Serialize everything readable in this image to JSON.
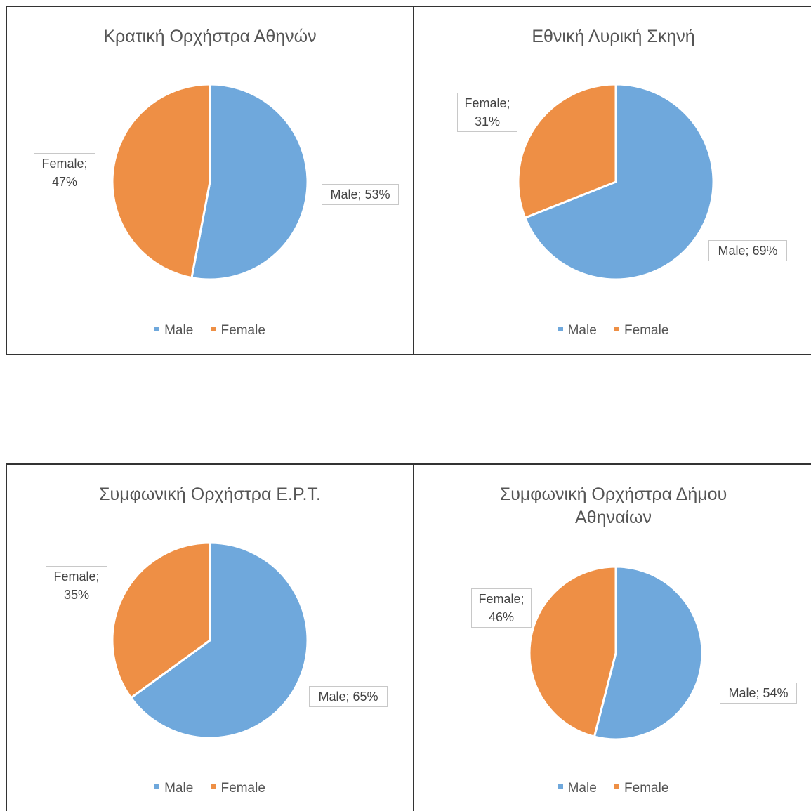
{
  "colors": {
    "male": "#6fa8dc",
    "female": "#ee8f45",
    "border": "#333333"
  },
  "chart_data": [
    {
      "type": "pie",
      "title": "Κρατική Ορχήστρα Αθηνών",
      "categories": [
        "Male",
        "Female"
      ],
      "values": [
        53,
        47
      ],
      "data_labels": [
        "Male; 53%",
        "Female; 47%"
      ],
      "legend": {
        "position": "bottom",
        "entries": [
          "Male",
          "Female"
        ]
      }
    },
    {
      "type": "pie",
      "title": "Εθνική Λυρική Σκηνή",
      "categories": [
        "Male",
        "Female"
      ],
      "values": [
        69,
        31
      ],
      "data_labels": [
        "Male; 69%",
        "Female; 31%"
      ],
      "legend": {
        "position": "bottom",
        "entries": [
          "Male",
          "Female"
        ]
      }
    },
    {
      "type": "pie",
      "title": "Συμφωνική Ορχήστρα Ε.Ρ.Τ.",
      "categories": [
        "Male",
        "Female"
      ],
      "values": [
        65,
        35
      ],
      "data_labels": [
        "Male; 65%",
        "Female; 35%"
      ],
      "legend": {
        "position": "bottom",
        "entries": [
          "Male",
          "Female"
        ]
      }
    },
    {
      "type": "pie",
      "title": "Συμφωνική Ορχήστρα Δήμου Αθηναίων",
      "categories": [
        "Male",
        "Female"
      ],
      "values": [
        54,
        46
      ],
      "data_labels": [
        "Male; 54%",
        "Female; 46%"
      ],
      "legend": {
        "position": "bottom",
        "entries": [
          "Male",
          "Female"
        ]
      }
    }
  ]
}
